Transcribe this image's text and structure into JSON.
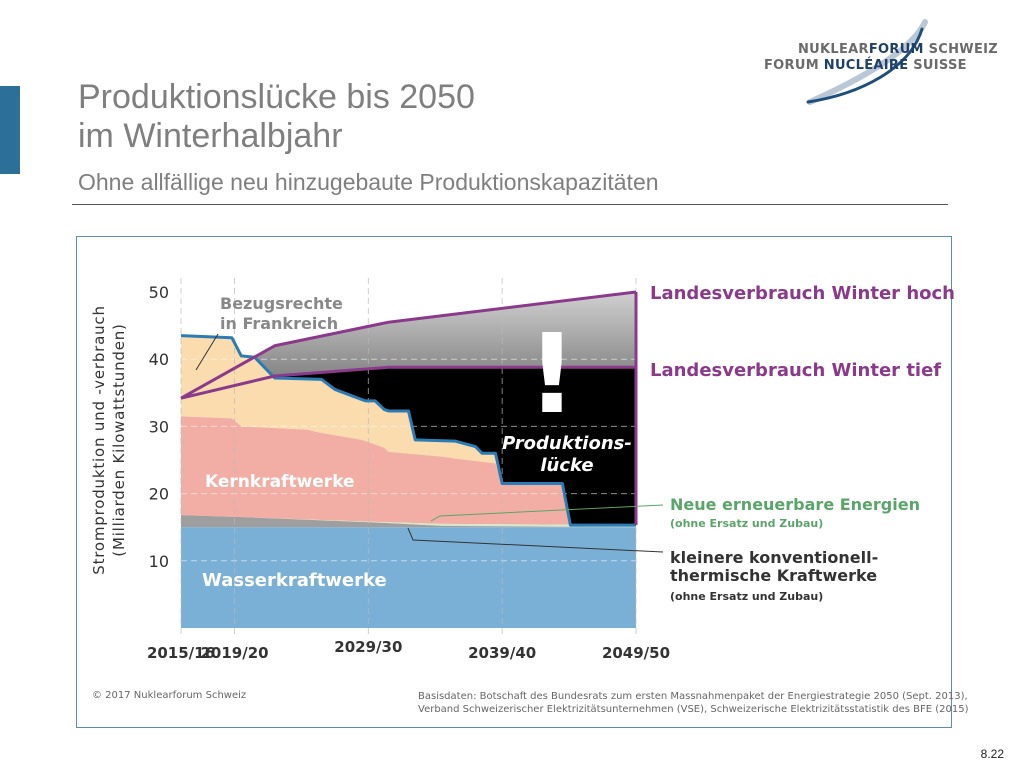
{
  "slide": {
    "title_line1": "Produktionslücke bis 2050",
    "title_line2": "im Winterhalbjahr",
    "subtitle": "Ohne allfällige neu hinzugebaute Produktionskapazitäten",
    "page_number": "8.22",
    "accent_color": "#2c6f99"
  },
  "logo": {
    "line1_a": "NUKLEAR",
    "line1_b": "FORUM",
    "line1_c": " SCHWEIZ",
    "line2_a": "FORUM ",
    "line2_b": "NUCLÉAIRE",
    "line2_c": " SUISSE"
  },
  "footer": {
    "copyright": "© 2017 Nuklearforum Schweiz",
    "source_line1": "Basisdaten: Botschaft des Bundesrats zum ersten Massnahmenpaket der Energiestrategie 2050 (Sept. 2013),",
    "source_line2": "Verband Schweizerischer Elektrizitätsunternehmen (VSE), Schweizerische Elektrizitätsstatistik des BFE (2015)"
  },
  "chart_data": {
    "type": "area",
    "ylabel_line1": "Stromproduktion und -verbrauch",
    "ylabel_line2": "(Milliarden Kilowattstunden)",
    "ylim": [
      0,
      50
    ],
    "xlim": [
      2015.5,
      2049.5
    ],
    "y_ticks": [
      10,
      20,
      30,
      40,
      50
    ],
    "x_ticks": [
      {
        "label": "2015/16",
        "x": 2015.5
      },
      {
        "label": "2019/20",
        "x": 2019.5
      },
      {
        "label": "2029/30",
        "x": 2029.5
      },
      {
        "label": "2039/40",
        "x": 2039.5
      },
      {
        "label": "2049/50",
        "x": 2049.5
      }
    ],
    "grid": true,
    "colors": {
      "wasser": "#7aafd6",
      "thermisch": "#9e9e9e",
      "erneuerbar": "#d7e7c8",
      "kern": "#f2aea4",
      "bezug": "#fadcaf",
      "gap": "#000000",
      "total_line": "#2b7bb5",
      "demand": "#8b3a8b",
      "renewable_label": "#5aa56a"
    },
    "series": [
      {
        "key": "wasser",
        "name": "Wasserkraftwerke",
        "x": [
          2015.5,
          2049.5
        ],
        "y": [
          15,
          15
        ]
      },
      {
        "key": "thermisch",
        "name": "kleinere konventionell-thermische Kraftwerke",
        "x": [
          2015.5,
          2020,
          2030,
          2035,
          2049.5
        ],
        "y": [
          16.8,
          16.5,
          15.7,
          15.2,
          15
        ]
      },
      {
        "key": "erneuerbar",
        "name": "Neue erneuerbare Energien",
        "x": [
          2015.5,
          2030,
          2035,
          2049.5
        ],
        "y": [
          16.8,
          15.8,
          15.5,
          15.3
        ]
      },
      {
        "key": "kern",
        "name": "Kernkraftwerke",
        "x": [
          2015.5,
          2019.3,
          2020.0,
          2025.0,
          2025.5,
          2029.0,
          2029.3,
          2030.7,
          2031.0,
          2035.0,
          2036.0,
          2039.0,
          2039.5,
          2044.0,
          2044.6,
          2049.5
        ],
        "y": [
          31.5,
          31.2,
          30.0,
          29.5,
          29.2,
          28.0,
          27.8,
          26.8,
          26.2,
          25.5,
          25.2,
          24.5,
          21.5,
          21.5,
          15.3,
          15.3
        ]
      },
      {
        "key": "total",
        "name": "Inländische Produktion + Bezugsrechte",
        "x": [
          2015.5,
          2019.3,
          2020.0,
          2021.0,
          2022.5,
          2026.0,
          2027.0,
          2029.0,
          2029.3,
          2030.0,
          2030.7,
          2031.0,
          2032.5,
          2033.0,
          2036.0,
          2037.5,
          2038.0,
          2039.0,
          2039.5,
          2044.0,
          2044.6,
          2049.5
        ],
        "y": [
          43.5,
          43.2,
          40.5,
          40.3,
          37.2,
          37.0,
          35.5,
          34.0,
          33.8,
          33.8,
          32.5,
          32.3,
          32.3,
          28.0,
          27.8,
          27.0,
          26.0,
          26.0,
          21.5,
          21.5,
          15.3,
          15.3
        ]
      },
      {
        "key": "demand_high",
        "name": "Landesverbrauch Winter hoch",
        "x": [
          2015.5,
          2022.5,
          2031.0,
          2049.5
        ],
        "y": [
          34.2,
          42.0,
          45.5,
          50.0
        ]
      },
      {
        "key": "demand_low",
        "name": "Landesverbrauch Winter tief",
        "x": [
          2015.5,
          2022.5,
          2031.0,
          2049.5
        ],
        "y": [
          34.2,
          37.5,
          38.8,
          38.8
        ]
      }
    ],
    "labels": {
      "bezug_line1": "Bezugsrechte",
      "bezug_line2": "in Frankreich",
      "kern": "Kernkraftwerke",
      "wasser": "Wasserkraftwerke",
      "gap_line1": "Produktions-",
      "gap_line2": "lücke",
      "exclamation": "!",
      "demand_high": "Landesverbrauch Winter hoch",
      "demand_low": "Landesverbrauch Winter tief",
      "renewable": "Neue erneuerbare Energien",
      "renewable_note": "(ohne Ersatz und Zubau)",
      "thermal_line1": "kleinere konventionell-",
      "thermal_line2": "thermische Kraftwerke",
      "thermal_note": "(ohne Ersatz und Zubau)"
    }
  }
}
